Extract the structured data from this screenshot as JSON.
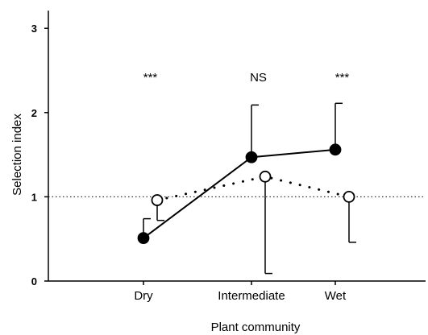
{
  "chart_data": {
    "type": "line",
    "xlabel": "Plant community",
    "ylabel": "Selection index",
    "categories": [
      "Dry",
      "Intermediate",
      "Wet"
    ],
    "ylim": [
      0,
      3
    ],
    "yticks": [
      0,
      1,
      2,
      3
    ],
    "reference_line": 1,
    "grid": false,
    "series": [
      {
        "marker": "filled-circle",
        "line_style": "solid",
        "values": [
          0.51,
          1.47,
          1.56
        ],
        "error_upper": [
          0.74,
          2.09,
          2.11
        ],
        "color": "#000000"
      },
      {
        "marker": "open-circle",
        "line_style": "dotted",
        "values": [
          0.96,
          1.24,
          1.0
        ],
        "error_upper": [
          0.96,
          1.24,
          1.0
        ],
        "error_lower": [
          0.72,
          0.09,
          0.46
        ],
        "color": "#000000"
      }
    ],
    "annotations": [
      {
        "category": "Dry",
        "text": "***",
        "y": 2.42
      },
      {
        "category": "Intermediate",
        "text": "NS",
        "y": 2.42
      },
      {
        "category": "Wet",
        "text": "***",
        "y": 2.42
      }
    ]
  }
}
